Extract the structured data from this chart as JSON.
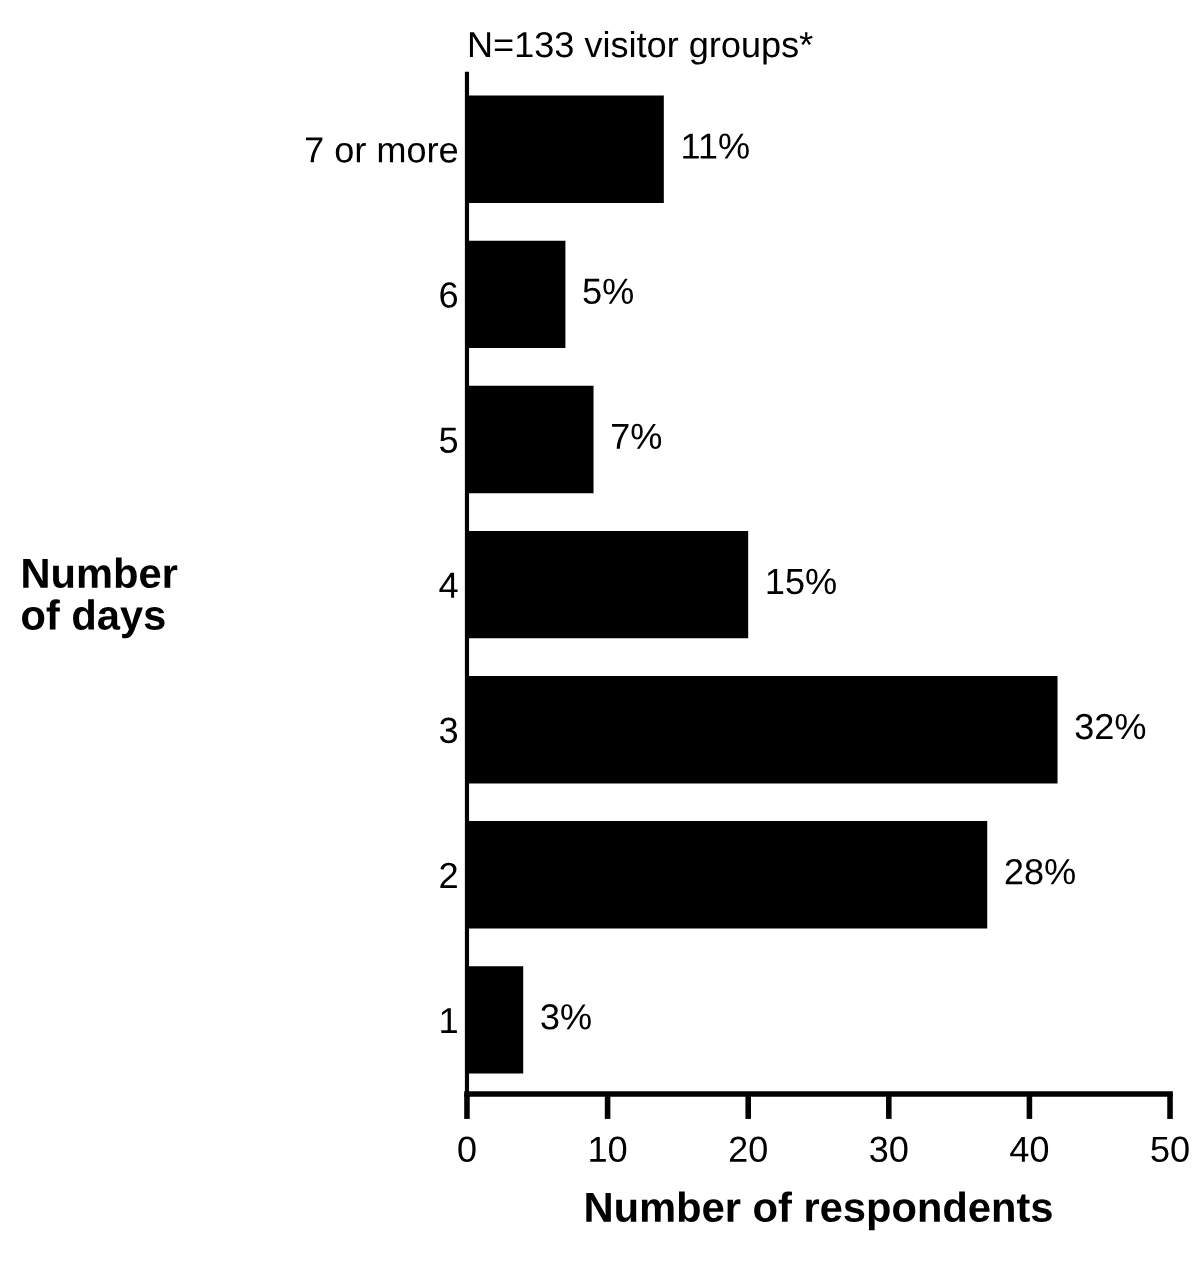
{
  "chart_data": {
    "type": "bar",
    "orientation": "horizontal",
    "title": "N=133 visitor groups*",
    "xlabel": "Number of respondents",
    "ylabel": "Number\nof days",
    "categories": [
      "7 or more",
      "6",
      "5",
      "4",
      "3",
      "2",
      "1"
    ],
    "values": [
      14,
      7,
      9,
      20,
      42,
      37,
      4
    ],
    "annotations": [
      {
        "text": "11%",
        "x": 14,
        "y": "7 or more"
      },
      {
        "text": "5%",
        "x": 7,
        "y": "6"
      },
      {
        "text": "7%",
        "x": 9,
        "y": "5"
      },
      {
        "text": "15%",
        "x": 20,
        "y": "4"
      },
      {
        "text": "32%",
        "x": 42,
        "y": "3"
      },
      {
        "text": "28%",
        "x": 37,
        "y": "2"
      },
      {
        "text": "3%",
        "x": 4,
        "y": "1"
      }
    ],
    "color": "#000000",
    "xlim": [
      0,
      50
    ],
    "xticks": [
      0,
      10,
      20,
      30,
      40,
      50
    ],
    "grid": false,
    "legend": false
  }
}
